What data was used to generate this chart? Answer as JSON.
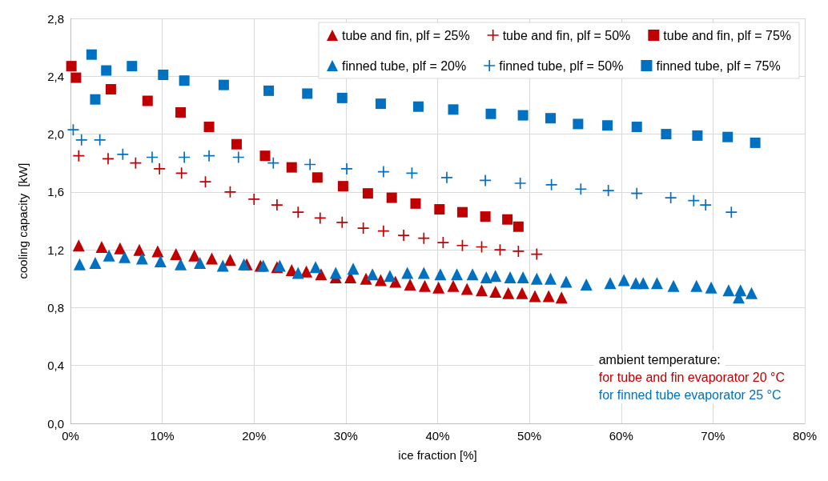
{
  "chart_data": {
    "type": "scatter",
    "xlabel": "ice fraction [%]",
    "ylabel": "cooling capacity  [kW]",
    "xlim": [
      0,
      80
    ],
    "xticks": [
      {
        "value": 0,
        "label": "0%"
      },
      {
        "value": 10,
        "label": "10%"
      },
      {
        "value": 20,
        "label": "20%"
      },
      {
        "value": 30,
        "label": "30%"
      },
      {
        "value": 40,
        "label": "40%"
      },
      {
        "value": 50,
        "label": "50%"
      },
      {
        "value": 60,
        "label": "60%"
      },
      {
        "value": 70,
        "label": "70%"
      },
      {
        "value": 80,
        "label": "80%"
      }
    ],
    "ylim": [
      0,
      2.8
    ],
    "yticks": [
      {
        "value": 0,
        "label": "0,0"
      },
      {
        "value": 0.4,
        "label": "0,4"
      },
      {
        "value": 0.8,
        "label": "0,8"
      },
      {
        "value": 1.2,
        "label": "1,2"
      },
      {
        "value": 1.6,
        "label": "1,6"
      },
      {
        "value": 2.0,
        "label": "2,0"
      },
      {
        "value": 2.4,
        "label": "2,4"
      },
      {
        "value": 2.8,
        "label": "2,8"
      }
    ],
    "grid": true,
    "legend": "top right",
    "annotations": [
      "ambient temperature:",
      "for tube and fin evaporator 20 °C",
      "for finned tube evaporator 25 °C"
    ],
    "series": [
      {
        "name": "tube and fin, plf = 25%",
        "color": "#c00000",
        "marker": "triangle",
        "x": [
          0.9,
          3.4,
          5.4,
          7.5,
          9.5,
          11.5,
          13.5,
          15.4,
          17.4,
          19.2,
          20.7,
          22.5,
          24.1,
          25.7,
          27.3,
          28.9,
          30.5,
          32.2,
          33.8,
          35.4,
          37.0,
          38.6,
          40.1,
          41.7,
          43.2,
          44.8,
          46.3,
          47.7,
          49.2,
          50.6,
          52.1,
          53.5
        ],
        "values": [
          1.23,
          1.22,
          1.21,
          1.2,
          1.19,
          1.17,
          1.16,
          1.14,
          1.13,
          1.1,
          1.09,
          1.08,
          1.06,
          1.05,
          1.03,
          1.01,
          1.01,
          1.0,
          0.99,
          0.98,
          0.96,
          0.95,
          0.94,
          0.95,
          0.93,
          0.92,
          0.91,
          0.9,
          0.9,
          0.88,
          0.88,
          0.87
        ]
      },
      {
        "name": "tube and fin, plf = 50%",
        "color": "#c00000",
        "marker": "cross",
        "x": [
          0.9,
          4.1,
          7.1,
          9.7,
          12.1,
          14.7,
          17.4,
          20.0,
          22.5,
          24.8,
          27.2,
          29.6,
          31.9,
          34.1,
          36.3,
          38.5,
          40.6,
          42.7,
          44.8,
          46.8,
          48.8,
          50.8
        ],
        "values": [
          1.85,
          1.83,
          1.8,
          1.76,
          1.73,
          1.67,
          1.6,
          1.55,
          1.51,
          1.46,
          1.42,
          1.39,
          1.35,
          1.33,
          1.3,
          1.28,
          1.25,
          1.23,
          1.22,
          1.2,
          1.19,
          1.17
        ]
      },
      {
        "name": "tube and fin, plf = 75%",
        "color": "#c00000",
        "marker": "square",
        "x": [
          0.1,
          0.6,
          4.4,
          8.4,
          12.0,
          15.1,
          18.1,
          21.2,
          24.1,
          26.9,
          29.7,
          32.4,
          35.0,
          37.6,
          40.2,
          42.7,
          45.2,
          47.6,
          48.8
        ],
        "values": [
          2.47,
          2.39,
          2.31,
          2.23,
          2.15,
          2.05,
          1.93,
          1.85,
          1.77,
          1.7,
          1.64,
          1.59,
          1.56,
          1.52,
          1.48,
          1.46,
          1.43,
          1.41,
          1.36
        ]
      },
      {
        "name": "finned tube, plf = 20%",
        "color": "#0070c0",
        "marker": "triangle",
        "x": [
          1.0,
          2.7,
          4.2,
          5.9,
          7.8,
          9.8,
          12.0,
          14.1,
          16.6,
          18.9,
          21.0,
          22.8,
          24.8,
          26.7,
          28.9,
          30.8,
          32.9,
          34.8,
          36.7,
          38.5,
          40.3,
          42.1,
          43.8,
          45.3,
          46.3,
          47.9,
          49.3,
          50.8,
          52.3,
          54.0,
          56.2,
          58.8,
          60.3,
          61.6,
          62.4,
          63.9,
          65.7,
          68.2,
          69.8,
          71.7,
          73.0,
          72.8,
          74.2
        ],
        "values": [
          1.1,
          1.11,
          1.16,
          1.15,
          1.14,
          1.12,
          1.1,
          1.11,
          1.09,
          1.1,
          1.09,
          1.09,
          1.04,
          1.08,
          1.04,
          1.07,
          1.03,
          1.02,
          1.04,
          1.04,
          1.03,
          1.03,
          1.03,
          1.01,
          1.02,
          1.01,
          1.01,
          1.0,
          1.0,
          0.98,
          0.96,
          0.97,
          0.99,
          0.97,
          0.97,
          0.97,
          0.95,
          0.95,
          0.94,
          0.92,
          0.92,
          0.87,
          0.9
        ]
      },
      {
        "name": "finned tube, plf = 50%",
        "color": "#0070c0",
        "marker": "cross",
        "x": [
          0.3,
          1.2,
          3.2,
          5.7,
          8.9,
          12.4,
          15.1,
          18.3,
          22.1,
          26.1,
          30.1,
          34.1,
          37.2,
          41.0,
          45.2,
          49.0,
          52.4,
          55.6,
          58.6,
          61.7,
          65.4,
          67.9,
          69.2,
          72.0
        ],
        "values": [
          2.03,
          1.96,
          1.96,
          1.86,
          1.84,
          1.84,
          1.85,
          1.84,
          1.8,
          1.79,
          1.76,
          1.74,
          1.73,
          1.7,
          1.68,
          1.66,
          1.65,
          1.62,
          1.61,
          1.59,
          1.56,
          1.54,
          1.51,
          1.46
        ]
      },
      {
        "name": "finned tube, plf = 75%",
        "color": "#0070c0",
        "marker": "square",
        "x": [
          2.3,
          2.7,
          3.9,
          6.7,
          10.1,
          12.4,
          16.7,
          21.6,
          25.8,
          29.6,
          33.8,
          37.9,
          41.7,
          45.8,
          49.3,
          52.3,
          55.3,
          58.5,
          61.7,
          64.9,
          68.3,
          71.6,
          74.6
        ],
        "values": [
          2.55,
          2.24,
          2.44,
          2.47,
          2.41,
          2.37,
          2.34,
          2.3,
          2.28,
          2.25,
          2.21,
          2.19,
          2.17,
          2.14,
          2.13,
          2.11,
          2.07,
          2.06,
          2.05,
          2.0,
          1.99,
          1.98,
          1.94
        ]
      }
    ]
  }
}
